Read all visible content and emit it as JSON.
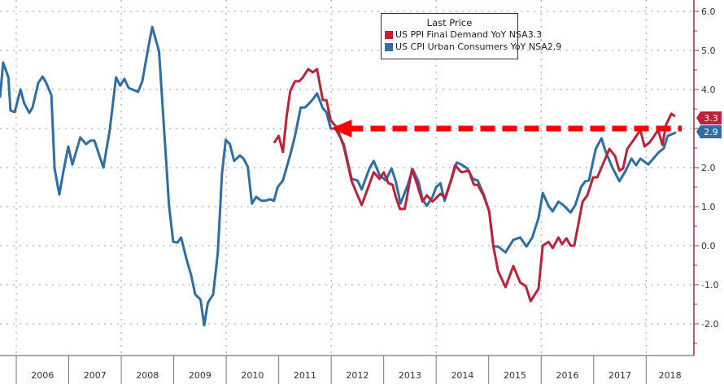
{
  "chart_data": {
    "type": "line",
    "title": "",
    "xlabel": "",
    "ylabel": "",
    "xlim": [
      2005.69,
      2018.91
    ],
    "ylim": [
      -2.8,
      6.3
    ],
    "yticks": [
      6.0,
      5.0,
      4.0,
      2.0,
      1.0,
      0.0,
      -1.0,
      -2.0
    ],
    "ytick_labels": [
      "6.0",
      "5.0",
      "4.0",
      "2.0",
      "1.0",
      "0.0",
      "-1.0",
      "-2.0"
    ],
    "gridlines_y": [
      6,
      5,
      4,
      3,
      2,
      1,
      0,
      -1,
      -2
    ],
    "gridlines_x": [
      2006,
      2008,
      2010,
      2012,
      2014,
      2016,
      2018
    ],
    "year_labels": [
      "2006",
      "2007",
      "2008",
      "2009",
      "2010",
      "2011",
      "2012",
      "2013",
      "2014",
      "2015",
      "2016",
      "2017",
      "2018"
    ],
    "legend": {
      "title": "Last Price",
      "placement": "top-center"
    },
    "series": [
      {
        "name": "US PPI Final Demand YoY NSA",
        "last": "3.3",
        "color": "#c0203a",
        "x": [
          2010.91,
          2011.0,
          2011.08,
          2011.15,
          2011.22,
          2011.31,
          2011.39,
          2011.46,
          2011.56,
          2011.65,
          2011.73,
          2011.84,
          2011.91,
          2011.99,
          2012.11,
          2012.24,
          2012.39,
          2012.58,
          2012.81,
          2012.92,
          2013.0,
          2013.09,
          2013.17,
          2013.23,
          2013.31,
          2013.4,
          2013.54,
          2013.63,
          2013.74,
          2013.82,
          2013.93,
          2014.08,
          2014.17,
          2014.28,
          2014.36,
          2014.48,
          2014.62,
          2014.72,
          2014.79,
          2014.9,
          2015.01,
          2015.09,
          2015.18,
          2015.32,
          2015.47,
          2015.6,
          2015.71,
          2015.8,
          2015.95,
          2016.03,
          2016.14,
          2016.22,
          2016.33,
          2016.4,
          2016.48,
          2016.56,
          2016.63,
          2016.79,
          2016.88,
          2016.99,
          2017.07,
          2017.19,
          2017.3,
          2017.41,
          2017.49,
          2017.56,
          2017.64,
          2017.73,
          2017.89,
          2017.97,
          2018.07,
          2018.23,
          2018.31,
          2018.38,
          2018.48,
          2018.55
        ],
        "values": [
          2.63,
          2.81,
          2.4,
          3.31,
          3.96,
          4.21,
          4.21,
          4.31,
          4.52,
          4.44,
          4.52,
          3.73,
          3.73,
          3.21,
          3.02,
          2.54,
          1.65,
          1.04,
          1.88,
          1.71,
          1.88,
          1.6,
          1.56,
          1.25,
          0.94,
          0.94,
          1.96,
          1.6,
          1.13,
          1.29,
          1.13,
          1.33,
          1.23,
          1.67,
          2.06,
          1.88,
          1.92,
          1.56,
          1.56,
          1.29,
          0.88,
          -0.02,
          -0.65,
          -1.06,
          -0.52,
          -0.94,
          -1.04,
          -1.42,
          -1.1,
          0.0,
          0.1,
          -0.06,
          0.21,
          0.04,
          0.19,
          0.0,
          0.0,
          1.13,
          1.29,
          1.75,
          1.75,
          2.13,
          2.48,
          2.29,
          1.92,
          1.98,
          2.48,
          2.65,
          2.96,
          2.54,
          2.65,
          2.96,
          2.58,
          3.1,
          3.38,
          3.31
        ]
      },
      {
        "name": "US CPI Urban Consumers YoY NSA",
        "last": "2.9",
        "color": "#2e6ea6",
        "x": [
          2005.69,
          2005.75,
          2005.85,
          2005.89,
          2005.97,
          2006.08,
          2006.15,
          2006.25,
          2006.31,
          2006.42,
          2006.5,
          2006.57,
          2006.67,
          2006.73,
          2006.82,
          2006.9,
          2006.99,
          2007.07,
          2007.22,
          2007.33,
          2007.41,
          2007.49,
          2007.66,
          2007.78,
          2007.9,
          2007.98,
          2008.06,
          2008.14,
          2008.32,
          2008.4,
          2008.51,
          2008.59,
          2008.72,
          2008.91,
          2008.99,
          2009.07,
          2009.14,
          2009.25,
          2009.33,
          2009.41,
          2009.51,
          2009.58,
          2009.65,
          2009.75,
          2009.84,
          2009.92,
          2009.99,
          2010.07,
          2010.15,
          2010.26,
          2010.33,
          2010.41,
          2010.49,
          2010.57,
          2010.67,
          2010.75,
          2010.83,
          2010.91,
          2010.98,
          2011.08,
          2011.22,
          2011.31,
          2011.42,
          2011.5,
          2011.57,
          2011.65,
          2011.73,
          2011.84,
          2011.91,
          2011.99,
          2012.08,
          2012.24,
          2012.39,
          2012.5,
          2012.58,
          2012.73,
          2012.81,
          2012.92,
          2013.04,
          2013.15,
          2013.23,
          2013.32,
          2013.46,
          2013.55,
          2013.66,
          2013.74,
          2013.82,
          2013.93,
          2014.0,
          2014.08,
          2014.16,
          2014.28,
          2014.39,
          2014.48,
          2014.59,
          2014.7,
          2014.79,
          2014.9,
          2015.01,
          2015.09,
          2015.18,
          2015.32,
          2015.47,
          2015.6,
          2015.72,
          2015.83,
          2015.95,
          2016.03,
          2016.14,
          2016.22,
          2016.33,
          2016.42,
          2016.56,
          2016.65,
          2016.76,
          2016.84,
          2016.91,
          2017.04,
          2017.15,
          2017.22,
          2017.35,
          2017.49,
          2017.61,
          2017.72,
          2017.81,
          2017.89,
          2018.04,
          2018.23,
          2018.34,
          2018.41,
          2018.57
        ],
        "values": [
          3.79,
          4.69,
          4.31,
          3.46,
          3.42,
          4.0,
          3.65,
          3.4,
          3.54,
          4.17,
          4.33,
          4.17,
          3.85,
          1.98,
          1.31,
          1.92,
          2.54,
          2.08,
          2.77,
          2.6,
          2.69,
          2.69,
          2.0,
          2.96,
          4.31,
          4.1,
          4.27,
          4.04,
          3.94,
          4.21,
          5.04,
          5.6,
          4.98,
          1.02,
          0.1,
          0.08,
          0.21,
          -0.38,
          -0.75,
          -1.25,
          -1.38,
          -2.04,
          -1.46,
          -1.25,
          -0.17,
          1.85,
          2.71,
          2.6,
          2.17,
          2.31,
          2.23,
          2.02,
          1.08,
          1.25,
          1.15,
          1.15,
          1.19,
          1.15,
          1.5,
          1.67,
          2.33,
          2.81,
          3.54,
          3.54,
          3.63,
          3.75,
          3.9,
          3.52,
          3.42,
          3.0,
          3.0,
          2.6,
          1.71,
          1.67,
          1.44,
          1.98,
          2.17,
          1.81,
          1.67,
          1.98,
          1.65,
          1.08,
          1.56,
          1.96,
          1.65,
          1.19,
          1.02,
          1.25,
          1.5,
          1.6,
          1.15,
          1.65,
          2.13,
          2.08,
          1.98,
          1.71,
          1.67,
          1.33,
          0.88,
          -0.02,
          -0.02,
          -0.17,
          0.15,
          0.21,
          -0.02,
          0.21,
          0.71,
          1.35,
          1.02,
          0.88,
          1.13,
          1.04,
          0.85,
          1.04,
          1.5,
          1.65,
          1.67,
          2.48,
          2.75,
          2.44,
          2.02,
          1.65,
          1.92,
          2.23,
          2.06,
          2.23,
          2.08,
          2.38,
          2.5,
          2.81,
          2.9
        ]
      }
    ],
    "annotations": [
      {
        "type": "dashed-arrow",
        "direction": "left",
        "y": 3.0,
        "x_from": 2018.68,
        "x_to": 2011.99,
        "color": "#ff0000"
      }
    ],
    "axis_color": "#a0284a"
  }
}
